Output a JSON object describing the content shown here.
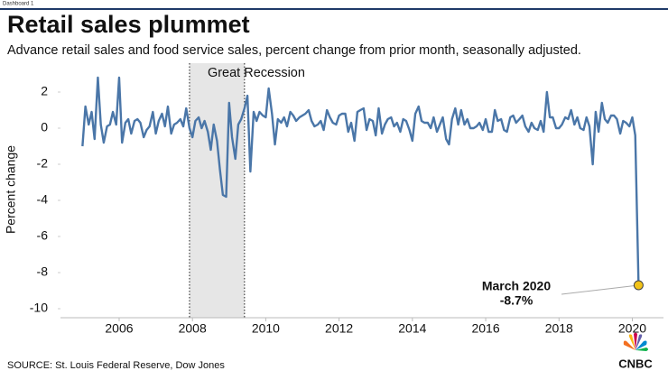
{
  "header": {
    "tab": "Dashboard 1"
  },
  "chart_data": {
    "type": "line",
    "title": "Retail sales plummet",
    "subtitle": "Advance retail sales and food service sales, percent change from prior month, seasonally adjusted.",
    "y_label": "Percent change",
    "color": "#4a76a8",
    "x": [
      2005.0,
      2005.08,
      2005.17,
      2005.25,
      2005.33,
      2005.42,
      2005.5,
      2005.58,
      2005.67,
      2005.75,
      2005.83,
      2005.92,
      2006.0,
      2006.08,
      2006.17,
      2006.25,
      2006.33,
      2006.42,
      2006.5,
      2006.58,
      2006.67,
      2006.75,
      2006.83,
      2006.92,
      2007.0,
      2007.08,
      2007.17,
      2007.25,
      2007.33,
      2007.42,
      2007.5,
      2007.58,
      2007.67,
      2007.75,
      2007.83,
      2007.92,
      2008.0,
      2008.08,
      2008.17,
      2008.25,
      2008.33,
      2008.42,
      2008.5,
      2008.58,
      2008.67,
      2008.75,
      2008.83,
      2008.92,
      2009.0,
      2009.08,
      2009.17,
      2009.25,
      2009.33,
      2009.42,
      2009.5,
      2009.58,
      2009.67,
      2009.75,
      2009.83,
      2009.92,
      2010.0,
      2010.08,
      2010.17,
      2010.25,
      2010.33,
      2010.42,
      2010.5,
      2010.58,
      2010.67,
      2010.75,
      2010.83,
      2010.92,
      2011.0,
      2011.08,
      2011.17,
      2011.25,
      2011.33,
      2011.42,
      2011.5,
      2011.58,
      2011.67,
      2011.75,
      2011.83,
      2011.92,
      2012.0,
      2012.08,
      2012.17,
      2012.25,
      2012.33,
      2012.42,
      2012.5,
      2012.58,
      2012.67,
      2012.75,
      2012.83,
      2012.92,
      2013.0,
      2013.08,
      2013.17,
      2013.25,
      2013.33,
      2013.42,
      2013.5,
      2013.58,
      2013.67,
      2013.75,
      2013.83,
      2013.92,
      2014.0,
      2014.08,
      2014.17,
      2014.25,
      2014.33,
      2014.42,
      2014.5,
      2014.58,
      2014.67,
      2014.75,
      2014.83,
      2014.92,
      2015.0,
      2015.08,
      2015.17,
      2015.25,
      2015.33,
      2015.42,
      2015.5,
      2015.58,
      2015.67,
      2015.75,
      2015.83,
      2015.92,
      2016.0,
      2016.08,
      2016.17,
      2016.25,
      2016.33,
      2016.42,
      2016.5,
      2016.58,
      2016.67,
      2016.75,
      2016.83,
      2016.92,
      2017.0,
      2017.08,
      2017.17,
      2017.25,
      2017.33,
      2017.42,
      2017.5,
      2017.58,
      2017.67,
      2017.75,
      2017.83,
      2017.92,
      2018.0,
      2018.08,
      2018.17,
      2018.25,
      2018.33,
      2018.42,
      2018.5,
      2018.58,
      2018.67,
      2018.75,
      2018.83,
      2018.92,
      2019.0,
      2019.08,
      2019.17,
      2019.25,
      2019.33,
      2019.42,
      2019.5,
      2019.58,
      2019.67,
      2019.75,
      2019.83,
      2019.92,
      2020.0,
      2020.08,
      2020.17
    ],
    "values": [
      -1.0,
      1.2,
      0.2,
      0.9,
      -0.6,
      2.8,
      0.2,
      -0.8,
      0.1,
      0.2,
      0.9,
      0.2,
      2.8,
      -0.8,
      0.3,
      0.5,
      -0.3,
      0.4,
      0.5,
      0.3,
      -0.5,
      -0.1,
      0.1,
      0.9,
      -0.3,
      0.4,
      0.8,
      0.1,
      1.2,
      -0.3,
      0.2,
      0.3,
      0.5,
      0.1,
      1.1,
      0.0,
      -0.5,
      0.4,
      0.6,
      0.0,
      0.4,
      -0.2,
      -1.2,
      0.2,
      -0.7,
      -2.3,
      -3.7,
      -3.8,
      1.4,
      -0.5,
      -1.7,
      0.2,
      0.5,
      1.1,
      1.8,
      -2.4,
      0.9,
      0.4,
      0.9,
      0.7,
      0.6,
      2.2,
      0.8,
      -0.9,
      0.5,
      0.3,
      0.6,
      0.1,
      0.9,
      0.7,
      0.4,
      0.6,
      0.7,
      0.8,
      1.0,
      0.4,
      0.1,
      0.2,
      0.4,
      -0.1,
      1.0,
      0.6,
      0.3,
      0.2,
      0.7,
      0.8,
      0.8,
      -0.2,
      0.3,
      -0.7,
      0.9,
      1.0,
      1.1,
      -0.1,
      0.5,
      0.4,
      -0.4,
      1.1,
      -0.3,
      0.2,
      0.5,
      0.6,
      0.1,
      0.3,
      -0.2,
      0.5,
      0.4,
      -0.1,
      -0.7,
      0.8,
      1.2,
      0.4,
      0.3,
      0.3,
      0.0,
      0.6,
      -0.2,
      0.2,
      0.6,
      -0.6,
      -0.9,
      0.5,
      1.1,
      0.2,
      1.0,
      0.2,
      0.5,
      0.0,
      0.0,
      0.1,
      0.3,
      -0.1,
      0.5,
      -0.2,
      -0.2,
      1.0,
      0.4,
      0.5,
      -0.1,
      -0.2,
      0.6,
      0.7,
      0.3,
      0.5,
      0.7,
      0.1,
      -0.2,
      0.3,
      0.0,
      -0.1,
      0.4,
      -0.2,
      2.0,
      0.6,
      0.6,
      0.0,
      0.0,
      0.2,
      0.6,
      0.5,
      1.0,
      0.2,
      0.6,
      0.0,
      -0.1,
      0.6,
      0.1,
      -2.0,
      0.9,
      -0.2,
      1.4,
      0.5,
      0.3,
      0.7,
      0.7,
      0.5,
      -0.3,
      0.4,
      0.3,
      0.1,
      0.6,
      -0.4,
      -8.7
    ],
    "xlim": [
      2004.4,
      2020.85
    ],
    "ylim": [
      -10.5,
      3.6
    ],
    "xticks": [
      2006,
      2008,
      2010,
      2012,
      2014,
      2016,
      2018,
      2020
    ],
    "yticks": [
      -10,
      -8,
      -6,
      -4,
      -2,
      0,
      2
    ],
    "grid": false,
    "shaded_regions": [
      {
        "label": "Great Recession",
        "x": [
          2007.92,
          2009.42
        ]
      }
    ],
    "annotations": [
      {
        "text": "March 2020"
      },
      {
        "text": "-8.7%"
      }
    ],
    "marker_color": "#f2c318",
    "source": "SOURCE: St. Louis Federal Reserve, Dow Jones",
    "logo": "CNBC"
  }
}
